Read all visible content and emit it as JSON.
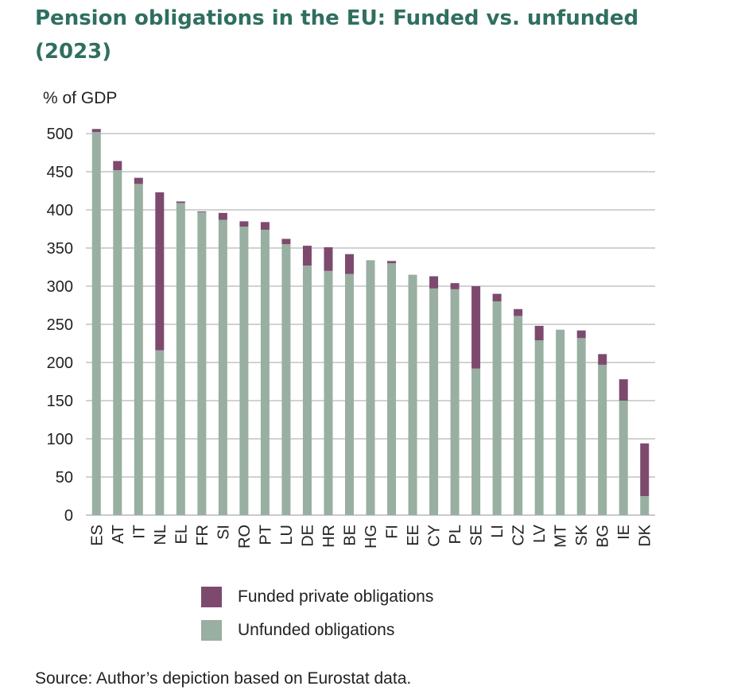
{
  "title": "Pension obligations in the EU: Funded vs. unfunded (2023)",
  "source": "Source: Author’s depiction based on Eurostat data.",
  "colors": {
    "funded": "#7d4a6e",
    "unfunded": "#98afa1",
    "grid": "#b8b8b8",
    "title": "#2f6f5f"
  },
  "chart_data": {
    "type": "bar",
    "stacked": true,
    "title": "Pension obligations in the EU: Funded vs. unfunded (2023)",
    "xlabel": "",
    "ylabel": "% of GDP",
    "ylim": [
      0,
      500
    ],
    "yticks": [
      0,
      50,
      100,
      150,
      200,
      250,
      300,
      350,
      400,
      450,
      500
    ],
    "grid": true,
    "legend_position": "bottom",
    "categories": [
      "ES",
      "AT",
      "IT",
      "NL",
      "EL",
      "FR",
      "SI",
      "RO",
      "PT",
      "LU",
      "DE",
      "HR",
      "BE",
      "HG",
      "FI",
      "EE",
      "CY",
      "PL",
      "SE",
      "LI",
      "CZ",
      "LV",
      "MT",
      "SK",
      "BG",
      "IE",
      "DK"
    ],
    "series": [
      {
        "name": "Unfunded obligations",
        "color": "#98afa1",
        "values": [
          502,
          452,
          434,
          216,
          409,
          397,
          387,
          378,
          374,
          355,
          327,
          320,
          316,
          334,
          330,
          315,
          297,
          296,
          192,
          280,
          261,
          229,
          243,
          232,
          197,
          150,
          25
        ]
      },
      {
        "name": "Funded private obligations",
        "color": "#7d4a6e",
        "values": [
          4,
          12,
          8,
          207,
          2,
          1,
          9,
          7,
          10,
          7,
          26,
          31,
          26,
          0,
          3,
          0,
          16,
          8,
          108,
          10,
          9,
          19,
          0,
          10,
          14,
          28,
          69
        ]
      }
    ]
  },
  "legend": [
    {
      "label": "Funded private obligations",
      "color": "#7d4a6e"
    },
    {
      "label": "Unfunded obligations",
      "color": "#98afa1"
    }
  ]
}
